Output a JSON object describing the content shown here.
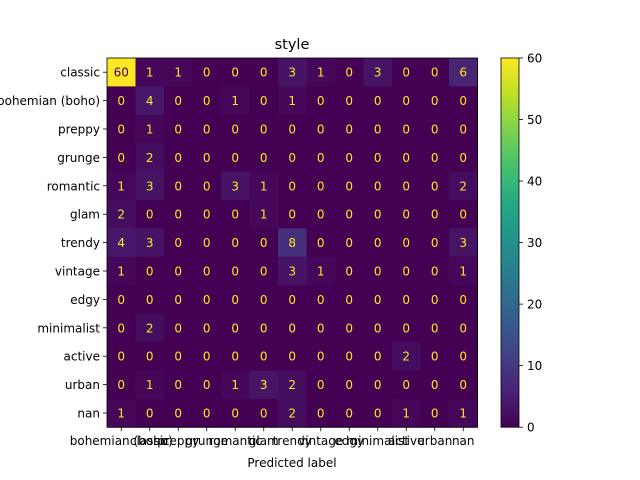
{
  "chart_data": {
    "type": "heatmap",
    "title": "style",
    "xlabel": "Predicted label",
    "ylabel": "",
    "row_labels": [
      "classic",
      "bohemian (boho)",
      "preppy",
      "grunge",
      "romantic",
      "glam",
      "trendy",
      "vintage",
      "edgy",
      "minimalist",
      "active",
      "urban",
      "nan"
    ],
    "col_labels": [
      "bohemian (boho)",
      "classic",
      "preppy",
      "grunge",
      "romantic",
      "glam",
      "trendy",
      "vintage",
      "edgy",
      "minimalist",
      "active",
      "urban",
      "nan"
    ],
    "matrix": [
      [
        60,
        1,
        1,
        0,
        0,
        0,
        3,
        1,
        0,
        3,
        0,
        0,
        6
      ],
      [
        0,
        4,
        0,
        0,
        1,
        0,
        1,
        0,
        0,
        0,
        0,
        0,
        0
      ],
      [
        0,
        1,
        0,
        0,
        0,
        0,
        0,
        0,
        0,
        0,
        0,
        0,
        0
      ],
      [
        0,
        2,
        0,
        0,
        0,
        0,
        0,
        0,
        0,
        0,
        0,
        0,
        0
      ],
      [
        1,
        3,
        0,
        0,
        3,
        1,
        0,
        0,
        0,
        0,
        0,
        0,
        2
      ],
      [
        2,
        0,
        0,
        0,
        0,
        1,
        0,
        0,
        0,
        0,
        0,
        0,
        0
      ],
      [
        4,
        3,
        0,
        0,
        0,
        0,
        8,
        0,
        0,
        0,
        0,
        0,
        3
      ],
      [
        1,
        0,
        0,
        0,
        0,
        0,
        3,
        1,
        0,
        0,
        0,
        0,
        1
      ],
      [
        0,
        0,
        0,
        0,
        0,
        0,
        0,
        0,
        0,
        0,
        0,
        0,
        0
      ],
      [
        0,
        2,
        0,
        0,
        0,
        0,
        0,
        0,
        0,
        0,
        0,
        0,
        0
      ],
      [
        0,
        0,
        0,
        0,
        0,
        0,
        0,
        0,
        0,
        0,
        2,
        0,
        0
      ],
      [
        0,
        1,
        0,
        0,
        1,
        3,
        2,
        0,
        0,
        0,
        0,
        0,
        0
      ],
      [
        1,
        0,
        0,
        0,
        0,
        0,
        2,
        0,
        0,
        0,
        1,
        0,
        1
      ]
    ],
    "colorbar": {
      "min": 0,
      "max": 60,
      "ticks": [
        0,
        10,
        20,
        30,
        40,
        50,
        60
      ]
    },
    "colormap": "viridis",
    "low_value_text_color": "#fde725",
    "high_value_text_color": "#440154",
    "grid": false
  }
}
